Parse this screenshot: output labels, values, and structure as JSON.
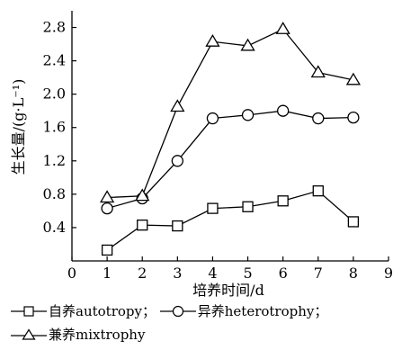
{
  "chart_data": {
    "type": "line",
    "xlabel": "培养时间/d",
    "ylabel": "生长量/(g·L⁻¹)",
    "xlim": [
      0,
      9
    ],
    "ylim": [
      0,
      3.0
    ],
    "xticks": [
      0,
      1,
      2,
      3,
      4,
      5,
      6,
      7,
      8,
      9
    ],
    "yticks": [
      0.4,
      0.8,
      1.2,
      1.6,
      2.0,
      2.4,
      2.8
    ],
    "ytick_labels": [
      "0.4",
      "0.8",
      "1.2",
      "1.6",
      "2.0",
      "2.4",
      "2.8"
    ],
    "grid": false,
    "legend_position": "bottom",
    "series": [
      {
        "name": "自养autotropy",
        "marker": "square",
        "x": [
          1,
          2,
          3,
          4,
          5,
          6,
          7,
          8
        ],
        "values": [
          0.13,
          0.43,
          0.42,
          0.63,
          0.65,
          0.72,
          0.84,
          0.47
        ]
      },
      {
        "name": "异养heterotrophy",
        "marker": "circle",
        "x": [
          1,
          2,
          3,
          4,
          5,
          6,
          7,
          8
        ],
        "values": [
          0.63,
          0.75,
          1.2,
          1.71,
          1.75,
          1.8,
          1.71,
          1.72
        ]
      },
      {
        "name": "兼养mixtrophy",
        "marker": "triangle",
        "x": [
          1,
          2,
          3,
          4,
          5,
          6,
          7,
          8
        ],
        "values": [
          0.76,
          0.78,
          1.85,
          2.63,
          2.58,
          2.78,
          2.26,
          2.17
        ]
      }
    ]
  },
  "legend": {
    "item1": "自养autotropy；",
    "item2": "异养heterotrophy；",
    "item3": "兼养mixtrophy"
  }
}
